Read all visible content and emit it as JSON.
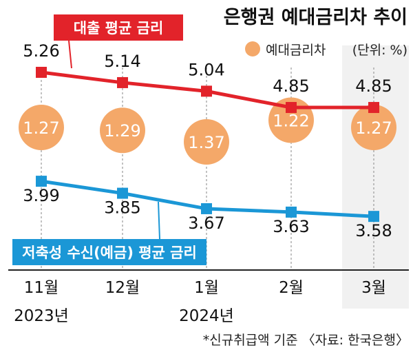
{
  "title": "은행권 예대금리차 추이",
  "legend": {
    "label": "예대금리차",
    "unit": "(단위: %)"
  },
  "footnote": "*신규취급액 기준 〈자료: 한국은행〉",
  "colors": {
    "loan": "#e2232a",
    "deposit": "#1b97d6",
    "spread": "#f4a869",
    "highlight": "#f1f1f1",
    "gridline": "#9a9a9a"
  },
  "chart_data": {
    "type": "line",
    "categories": [
      {
        "month": "11월",
        "year": "2023년"
      },
      {
        "month": "12월",
        "year": ""
      },
      {
        "month": "1월",
        "year": "2024년"
      },
      {
        "month": "2월",
        "year": ""
      },
      {
        "month": "3월",
        "year": ""
      }
    ],
    "series": [
      {
        "name": "대출 평균 금리",
        "values": [
          5.26,
          5.14,
          5.04,
          4.85,
          4.85
        ],
        "labels": [
          "5.26",
          "5.14",
          "5.04",
          "4.85",
          "4.85"
        ]
      },
      {
        "name": "저축성 수신(예금) 평균 금리",
        "values": [
          3.99,
          3.85,
          3.67,
          3.63,
          3.58
        ],
        "labels": [
          "3.99",
          "3.85",
          "3.67",
          "3.63",
          "3.58"
        ]
      }
    ],
    "spread": {
      "name": "예대금리차",
      "values": [
        1.27,
        1.29,
        1.37,
        1.22,
        1.27
      ],
      "labels": [
        "1.27",
        "1.29",
        "1.37",
        "1.22",
        "1.27"
      ]
    },
    "highlight_category": "3월",
    "unit": "%"
  }
}
